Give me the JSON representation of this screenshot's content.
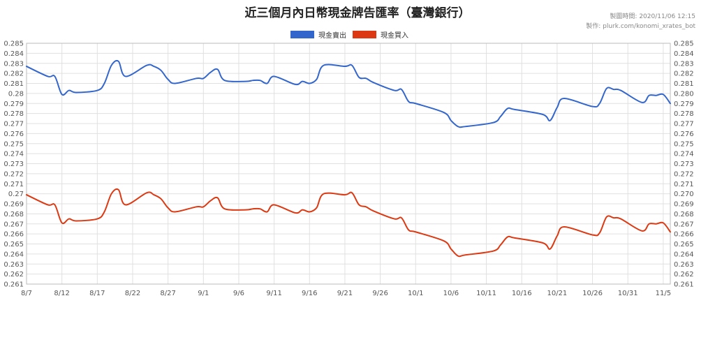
{
  "chart_data": {
    "type": "line",
    "title": "近三個月內日幣現金牌告匯率（臺灣銀行）",
    "made_time": "製圖時間: 2020/11/06 12:15",
    "made_by": "製作: plurk.com/konomi_xrates_bot",
    "ylim": [
      0.261,
      0.285
    ],
    "left_tick_labels": [
      "0.285",
      "0.284",
      "0.283",
      "0.282",
      "0.281",
      "0.28",
      "0.279",
      "0.278",
      "0.277",
      "0.276",
      "0.275",
      "0.274",
      "0.273",
      "0.272",
      "0.271",
      "0.27",
      "0.269",
      "0.268",
      "0.267",
      "0.266",
      "0.265",
      "0.264",
      "0.263",
      "0.262",
      "0.261"
    ],
    "right_tick_labels": [
      "0.285",
      "0.284",
      "0.283",
      "0.282",
      "0.281",
      "0.280",
      "0.279",
      "0.278",
      "0.277",
      "0.276",
      "0.275",
      "0.274",
      "0.273",
      "0.272",
      "0.271",
      "0.270",
      "0.269",
      "0.268",
      "0.267",
      "0.266",
      "0.265",
      "0.264",
      "0.263",
      "0.262",
      "0.261"
    ],
    "x_labels": [
      "8/7",
      "8/12",
      "8/17",
      "8/22",
      "8/27",
      "9/1",
      "9/6",
      "9/11",
      "9/16",
      "9/21",
      "9/26",
      "10/1",
      "10/6",
      "10/11",
      "10/16",
      "10/21",
      "10/26",
      "10/31",
      "11/5"
    ],
    "grid": true,
    "legend_position": "top",
    "x": [
      "8/7",
      "8/10",
      "8/11",
      "8/12",
      "8/13",
      "8/14",
      "8/17",
      "8/18",
      "8/19",
      "8/20",
      "8/21",
      "8/24",
      "8/25",
      "8/26",
      "8/27",
      "8/28",
      "8/31",
      "9/1",
      "9/2",
      "9/3",
      "9/4",
      "9/7",
      "9/8",
      "9/9",
      "9/10",
      "9/11",
      "9/14",
      "9/15",
      "9/16",
      "9/17",
      "9/18",
      "9/21",
      "9/22",
      "9/23",
      "9/24",
      "9/25",
      "9/28",
      "9/29",
      "9/30",
      "10/1",
      "10/5",
      "10/6",
      "10/7",
      "10/8",
      "10/12",
      "10/13",
      "10/14",
      "10/15",
      "10/19",
      "10/20",
      "10/21",
      "10/22",
      "10/26",
      "10/27",
      "10/28",
      "10/29",
      "10/30",
      "11/2",
      "11/3",
      "11/4",
      "11/5",
      "11/6"
    ],
    "series": [
      {
        "name": "現金賣出",
        "color": "#3366cc",
        "values": [
          0.2827,
          0.2817,
          0.2817,
          0.2799,
          0.2803,
          0.2801,
          0.2803,
          0.281,
          0.2828,
          0.2832,
          0.2817,
          0.2828,
          0.2827,
          0.2823,
          0.2814,
          0.281,
          0.2815,
          0.2815,
          0.2821,
          0.2824,
          0.2813,
          0.2812,
          0.2813,
          0.2813,
          0.281,
          0.2817,
          0.2809,
          0.2812,
          0.281,
          0.2814,
          0.2828,
          0.2827,
          0.2828,
          0.2816,
          0.2815,
          0.2811,
          0.2803,
          0.2804,
          0.2792,
          0.279,
          0.2781,
          0.2773,
          0.2767,
          0.2767,
          0.2771,
          0.2777,
          0.2785,
          0.2784,
          0.2779,
          0.2773,
          0.2786,
          0.2795,
          0.2787,
          0.279,
          0.2805,
          0.2804,
          0.2803,
          0.2791,
          0.2798,
          0.2798,
          0.2799,
          0.279
        ]
      },
      {
        "name": "現金買入",
        "color": "#dc3912",
        "values": [
          0.2699,
          0.2689,
          0.2689,
          0.2671,
          0.2675,
          0.2673,
          0.2675,
          0.2682,
          0.27,
          0.2704,
          0.2689,
          0.2701,
          0.2699,
          0.2695,
          0.2686,
          0.2682,
          0.2687,
          0.2687,
          0.2693,
          0.2696,
          0.2685,
          0.2684,
          0.2685,
          0.2685,
          0.2682,
          0.2689,
          0.2681,
          0.2684,
          0.2682,
          0.2686,
          0.27,
          0.2699,
          0.2701,
          0.2689,
          0.2687,
          0.2683,
          0.2675,
          0.2676,
          0.2664,
          0.2662,
          0.2653,
          0.2645,
          0.2638,
          0.2639,
          0.2643,
          0.2649,
          0.2657,
          0.2656,
          0.2651,
          0.2645,
          0.2658,
          0.2667,
          0.2659,
          0.2661,
          0.2677,
          0.2676,
          0.2675,
          0.2663,
          0.267,
          0.267,
          0.2671,
          0.2662
        ]
      }
    ]
  }
}
